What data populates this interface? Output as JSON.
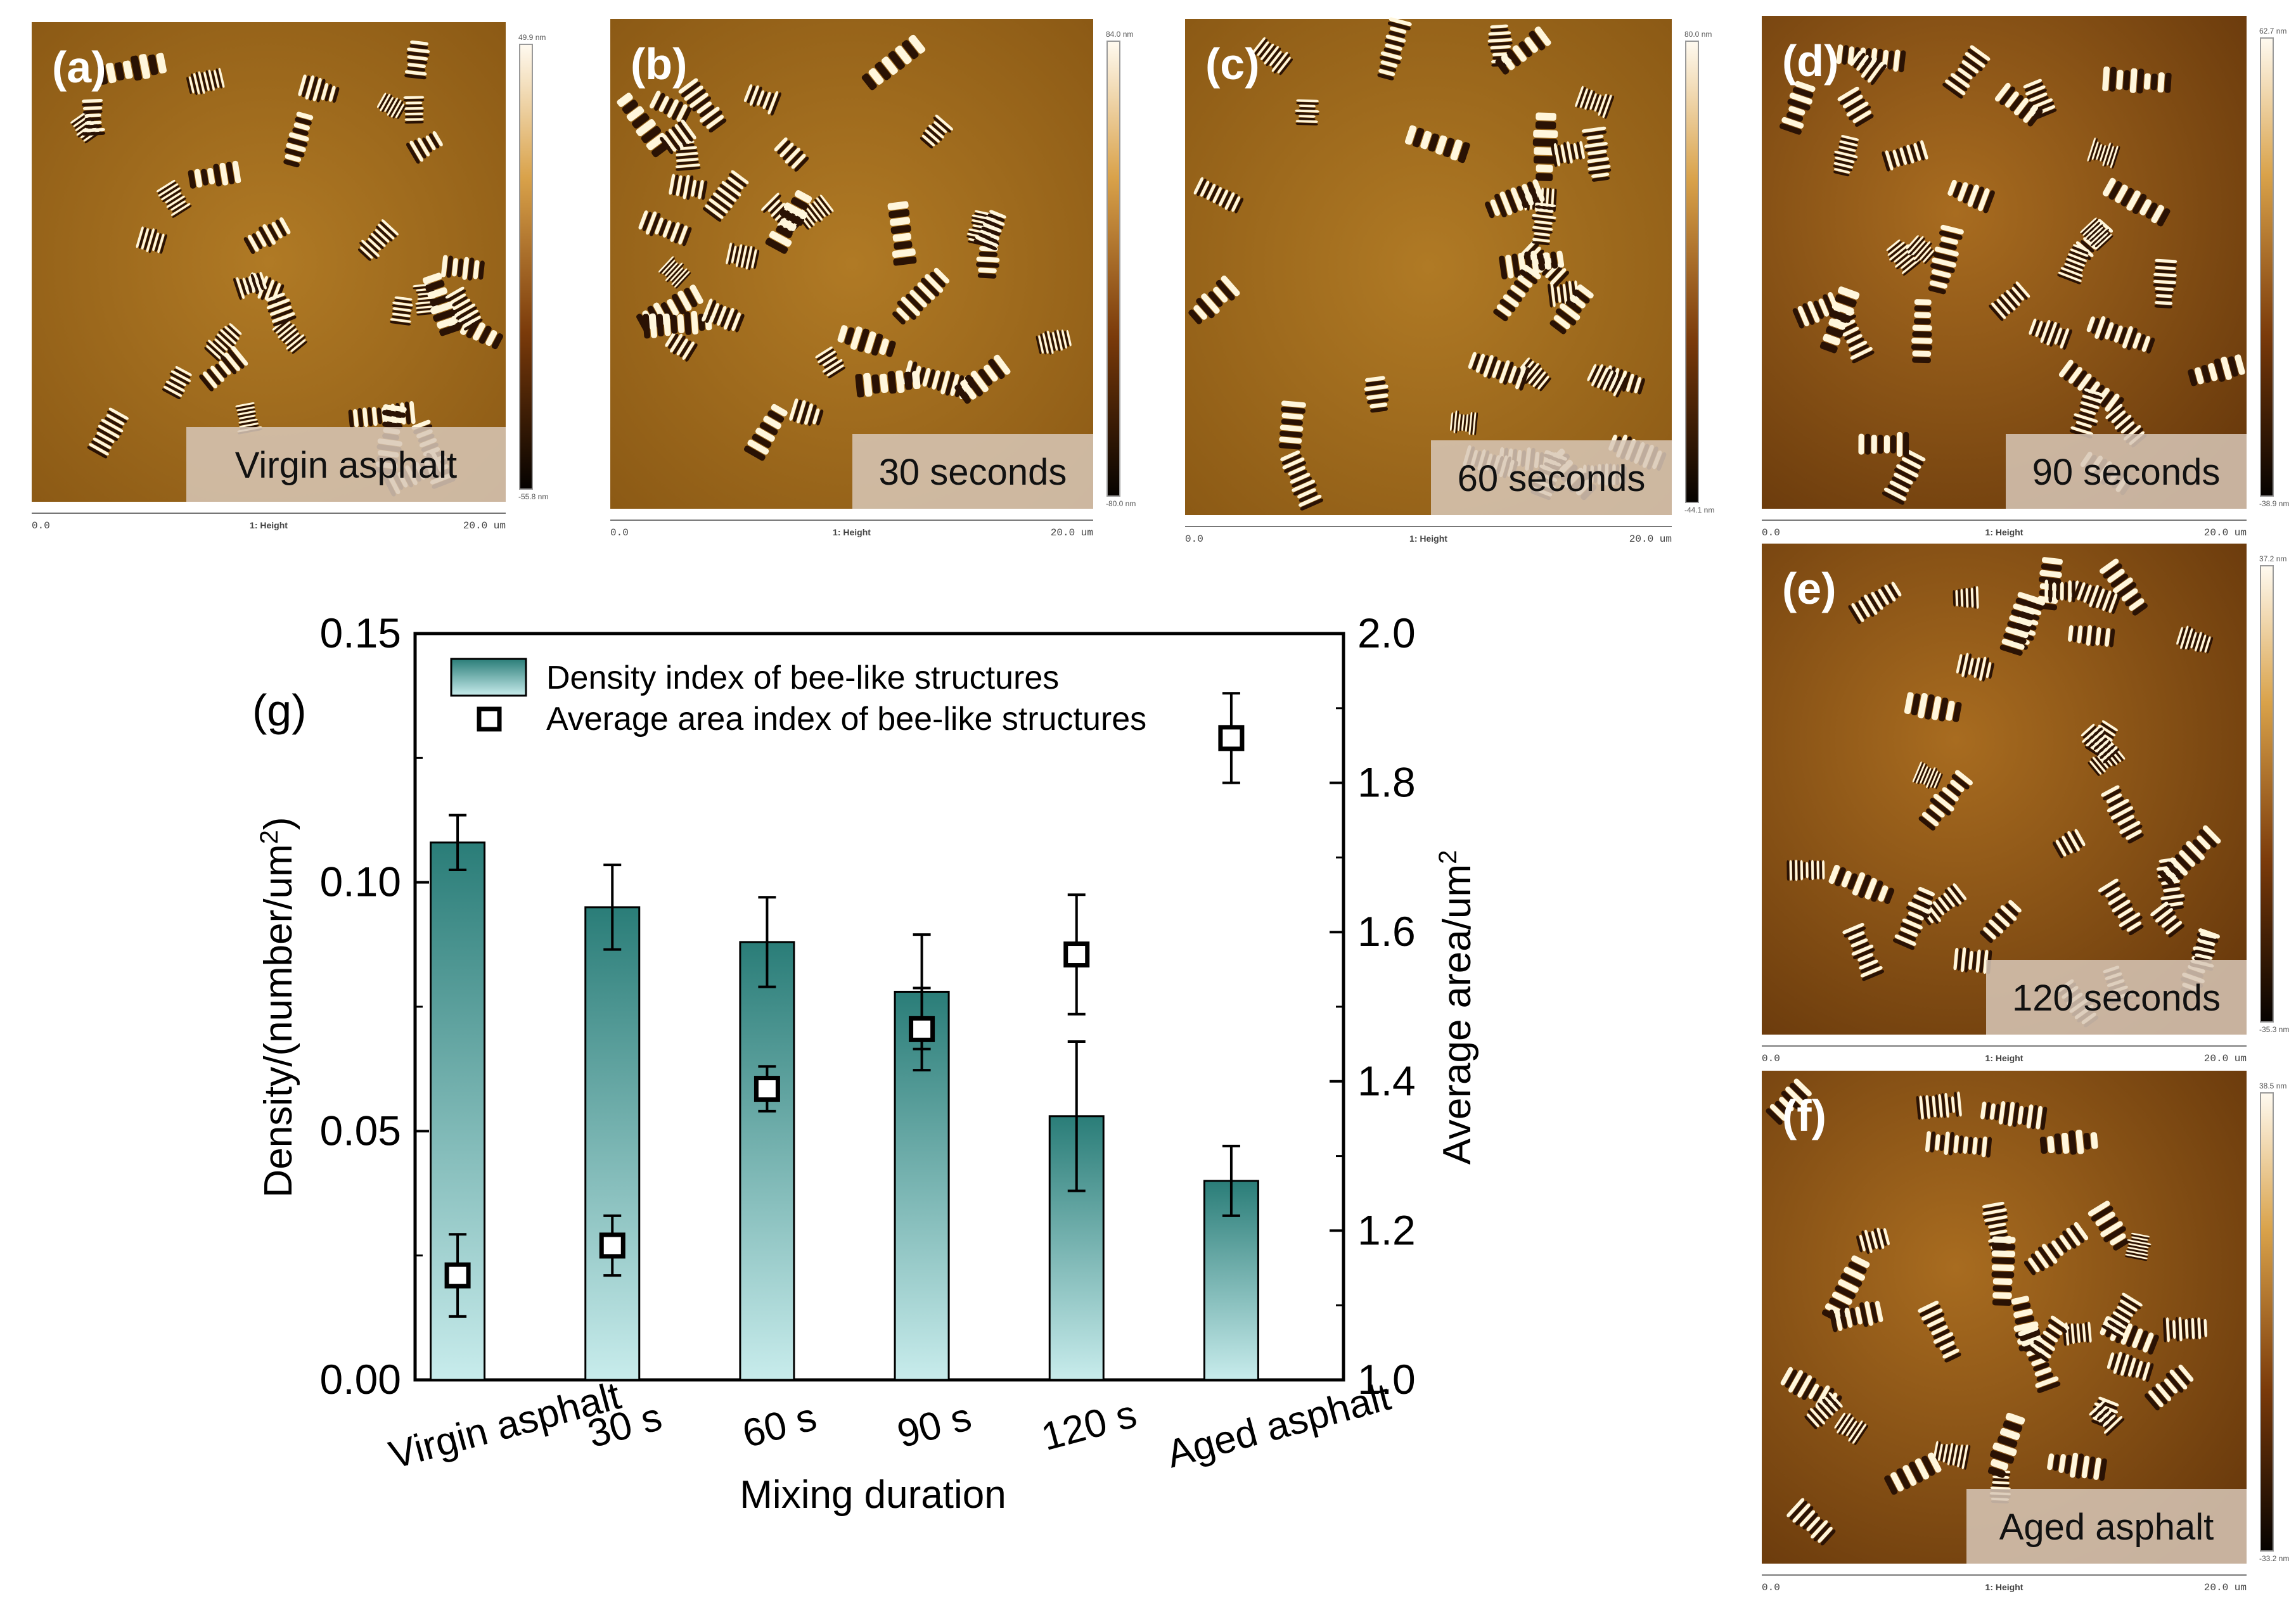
{
  "afm_panels": [
    {
      "id": "a",
      "tag": "(a)",
      "caption": "Virgin asphalt",
      "scale_max": "49.9 nm",
      "scale_min": "-55.8 nm",
      "axis_start": "0.0",
      "axis_mid": "1: Height",
      "axis_end": "20.0 um"
    },
    {
      "id": "b",
      "tag": "(b)",
      "caption": "30 seconds",
      "scale_max": "84.0 nm",
      "scale_min": "-80.0 nm",
      "axis_start": "0.0",
      "axis_mid": "1: Height",
      "axis_end": "20.0 um"
    },
    {
      "id": "c",
      "tag": "(c)",
      "caption": "60 seconds",
      "scale_max": "80.0 nm",
      "scale_min": "-44.1 nm",
      "axis_start": "0.0",
      "axis_mid": "1: Height",
      "axis_end": "20.0 um"
    },
    {
      "id": "d",
      "tag": "(d)",
      "caption": "90 seconds",
      "scale_max": "62.7 nm",
      "scale_min": "-38.9 nm",
      "axis_start": "0.0",
      "axis_mid": "1: Height",
      "axis_end": "20.0 um"
    },
    {
      "id": "e",
      "tag": "(e)",
      "caption": "120 seconds",
      "scale_max": "37.2 nm",
      "scale_min": "-35.3 nm",
      "axis_start": "0.0",
      "axis_mid": "1: Height",
      "axis_end": "20.0 um"
    },
    {
      "id": "f",
      "tag": "(f)",
      "caption": "Aged asphalt",
      "scale_max": "38.5 nm",
      "scale_min": "-33.2 nm",
      "axis_start": "0.0",
      "axis_mid": "1: Height",
      "axis_end": "20.0 um"
    }
  ],
  "chart_data": {
    "type": "bar",
    "panel_tag": "(g)",
    "categories": [
      "Virgin asphalt",
      "30 s",
      "60 s",
      "90 s",
      "120 s",
      "Aged asphalt"
    ],
    "xlabel": "Mixing duration",
    "ylabel": "Density/(number/um",
    "ylabel_sup": "2",
    "ylabel_close": ")",
    "y2label": "Average area/um",
    "y2label_sup": "2",
    "ylim": [
      0.0,
      0.15
    ],
    "y2lim": [
      1.0,
      2.0
    ],
    "yticks": [
      "0.00",
      "0.05",
      "0.10",
      "0.15"
    ],
    "y2ticks": [
      "1.0",
      "1.2",
      "1.4",
      "1.6",
      "1.8",
      "2.0"
    ],
    "series": [
      {
        "name": "Density index of bee-like structures",
        "kind": "bar",
        "axis": "left",
        "values": [
          0.108,
          0.095,
          0.088,
          0.078,
          0.053,
          0.04
        ],
        "errors": [
          0.0055,
          0.0085,
          0.009,
          0.0115,
          0.015,
          0.007
        ]
      },
      {
        "name": "Average area index of bee-like structures",
        "kind": "square-marker",
        "axis": "right",
        "values": [
          1.14,
          1.18,
          1.39,
          1.47,
          1.57,
          1.86
        ],
        "errors": [
          0.055,
          0.04,
          0.03,
          0.055,
          0.08,
          0.06
        ]
      }
    ],
    "colors": {
      "bar_top": "#2a7d78",
      "bar_bottom": "#c8ecec",
      "marker_fill": "#ffffff",
      "axis": "#000000"
    }
  }
}
